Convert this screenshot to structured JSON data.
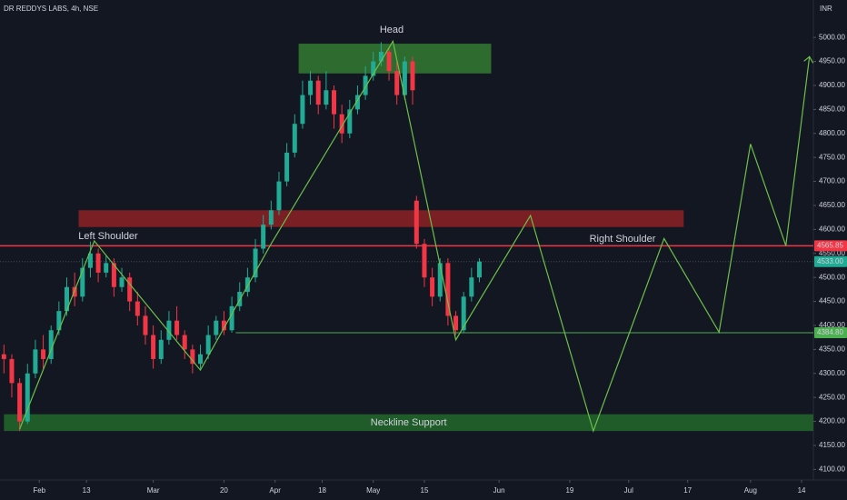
{
  "chart_data": {
    "type": "candlestick",
    "title": "DR REDDYS LABS, 4h, NSE",
    "currency": "INR",
    "up_color": "#22ab94",
    "down_color": "#f23645",
    "x": [
      -9,
      -7,
      -5,
      -3,
      -1,
      1,
      3,
      5,
      7,
      9,
      11,
      13,
      15,
      17,
      19,
      21,
      23,
      25,
      27,
      29,
      31,
      33,
      35,
      37,
      39,
      41,
      43,
      45,
      47,
      49,
      51,
      53,
      55,
      57,
      59,
      61,
      63,
      65,
      67,
      69,
      71,
      73,
      75,
      77,
      79,
      81,
      83,
      85,
      87,
      89,
      91,
      93,
      95,
      96,
      98,
      100,
      102,
      104,
      106,
      108,
      110,
      112
    ],
    "open": [
      4340,
      4330,
      4280,
      4200,
      4300,
      4350,
      4330,
      4390,
      4430,
      4480,
      4460,
      4520,
      4550,
      4510,
      4530,
      4480,
      4500,
      4450,
      4420,
      4380,
      4330,
      4370,
      4410,
      4380,
      4350,
      4320,
      4340,
      4380,
      4410,
      4390,
      4440,
      4470,
      4500,
      4560,
      4610,
      4640,
      4700,
      4760,
      4820,
      4880,
      4910,
      4860,
      4890,
      4840,
      4800,
      4850,
      4880,
      4920,
      4950,
      4970,
      4930,
      4880,
      4950,
      4660,
      4570,
      4500,
      4460,
      4530,
      4420,
      4390,
      4460,
      4500
    ],
    "high": [
      4360,
      4340,
      4290,
      4320,
      4370,
      4380,
      4400,
      4450,
      4500,
      4510,
      4540,
      4575,
      4560,
      4545,
      4540,
      4520,
      4510,
      4470,
      4440,
      4400,
      4390,
      4430,
      4440,
      4390,
      4360,
      4360,
      4400,
      4420,
      4430,
      4460,
      4490,
      4520,
      4580,
      4630,
      4660,
      4720,
      4780,
      4840,
      4910,
      4930,
      4920,
      4930,
      4900,
      4860,
      4870,
      4900,
      4940,
      4970,
      4990,
      4980,
      4950,
      4960,
      4960,
      4670,
      4580,
      4520,
      4540,
      4540,
      4430,
      4470,
      4520,
      4540
    ],
    "low": [
      4300,
      4250,
      4180,
      4195,
      4290,
      4310,
      4320,
      4380,
      4420,
      4440,
      4450,
      4500,
      4490,
      4500,
      4460,
      4470,
      4430,
      4400,
      4360,
      4310,
      4320,
      4360,
      4370,
      4330,
      4300,
      4310,
      4330,
      4370,
      4380,
      4385,
      4430,
      4460,
      4490,
      4550,
      4600,
      4630,
      4690,
      4750,
      4810,
      4860,
      4840,
      4850,
      4810,
      4780,
      4790,
      4840,
      4870,
      4910,
      4940,
      4910,
      4860,
      4870,
      4860,
      4560,
      4480,
      4440,
      4450,
      4400,
      4380,
      4385,
      4450,
      4490
    ],
    "close": [
      4330,
      4280,
      4200,
      4300,
      4350,
      4330,
      4390,
      4430,
      4480,
      4460,
      4520,
      4550,
      4510,
      4530,
      4480,
      4500,
      4450,
      4420,
      4380,
      4330,
      4370,
      4410,
      4380,
      4350,
      4320,
      4340,
      4380,
      4410,
      4390,
      4440,
      4470,
      4500,
      4560,
      4610,
      4640,
      4700,
      4760,
      4820,
      4880,
      4910,
      4860,
      4890,
      4840,
      4800,
      4850,
      4880,
      4920,
      4950,
      4970,
      4930,
      4880,
      4950,
      4890,
      4570,
      4500,
      4460,
      4530,
      4420,
      4390,
      4460,
      4500,
      4533
    ],
    "xlim": [
      -10,
      197
    ],
    "ylim": [
      4078,
      5078
    ],
    "xticks": [
      {
        "value": 0,
        "label": "Feb"
      },
      {
        "value": 12,
        "label": "13"
      },
      {
        "value": 29,
        "label": "Mar"
      },
      {
        "value": 47,
        "label": "20"
      },
      {
        "value": 60,
        "label": "Apr"
      },
      {
        "value": 72,
        "label": "18"
      },
      {
        "value": 85,
        "label": "May"
      },
      {
        "value": 98,
        "label": "15"
      },
      {
        "value": 117,
        "label": "Jun"
      },
      {
        "value": 135,
        "label": "19"
      },
      {
        "value": 150,
        "label": "Jul"
      },
      {
        "value": 165,
        "label": "17"
      },
      {
        "value": 181,
        "label": "Aug"
      },
      {
        "value": 194,
        "label": "14"
      }
    ],
    "yticks": [
      {
        "value": 4100,
        "label": "4100.00"
      },
      {
        "value": 4150,
        "label": "4150.00"
      },
      {
        "value": 4200,
        "label": "4200.00"
      },
      {
        "value": 4250,
        "label": "4250.00"
      },
      {
        "value": 4300,
        "label": "4300.00"
      },
      {
        "value": 4350,
        "label": "4350.00"
      },
      {
        "value": 4400,
        "label": "4400.00"
      },
      {
        "value": 4450,
        "label": "4450.00"
      },
      {
        "value": 4500,
        "label": "4500.00"
      },
      {
        "value": 4550,
        "label": "4550.00"
      },
      {
        "value": 4600,
        "label": "4600.00"
      },
      {
        "value": 4650,
        "label": "4650.00"
      },
      {
        "value": 4700,
        "label": "4700.00"
      },
      {
        "value": 4750,
        "label": "4750.00"
      },
      {
        "value": 4800,
        "label": "4800.00"
      },
      {
        "value": 4850,
        "label": "4850.00"
      },
      {
        "value": 4900,
        "label": "4900.00"
      },
      {
        "value": 4950,
        "label": "4950.00"
      },
      {
        "value": 5000,
        "label": "5000.00"
      }
    ],
    "grid": false,
    "zones": [
      {
        "x": [
          66,
          115
        ],
        "y": [
          4925,
          4987
        ],
        "color": "#2e6b2e"
      },
      {
        "x": [
          10,
          164
        ],
        "y": [
          4605,
          4640
        ],
        "color": "#7a1f24"
      },
      {
        "x": [
          -9,
          197
        ],
        "y": [
          4180,
          4215
        ],
        "color": "#1f5c2a",
        "label": "Neckline Support"
      }
    ],
    "annotations": [
      {
        "text": "Head"
      },
      {
        "text": "Left Shoulder"
      },
      {
        "text": "Right Shoulder"
      }
    ],
    "pattern": {
      "color": "#6cc04a",
      "x": [
        -5,
        14,
        41,
        59,
        90,
        106,
        125,
        141,
        159,
        173,
        181,
        190,
        196
      ],
      "y": [
        4184,
        4576,
        4307,
        4570,
        4992,
        4370,
        4629,
        4180,
        4581,
        4386,
        4778,
        4566,
        4960
      ]
    },
    "price_labels": [
      {
        "value": 4565.85,
        "label": "4565.85",
        "color": "#f23645"
      },
      {
        "value": 4533,
        "label": "4533.00",
        "color": "#22ab94"
      },
      {
        "value": 4384.8,
        "label": "4384.80",
        "color": "#4caf50",
        "line_from": 50
      }
    ]
  }
}
